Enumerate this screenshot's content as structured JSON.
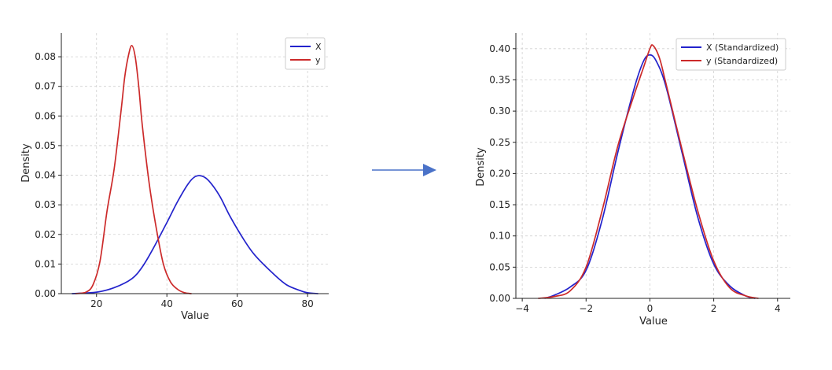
{
  "colors": {
    "X": "#2323cc",
    "y": "#cc2a2a",
    "arrow": "#4a72c8",
    "grid": "#d0d0d0"
  },
  "arrow": {
    "direction": "right"
  },
  "chart_data": [
    {
      "type": "line",
      "xlabel": "Value",
      "ylabel": "Density",
      "xlim": [
        10,
        86
      ],
      "ylim": [
        0,
        0.088
      ],
      "xticks": [
        20,
        40,
        60,
        80
      ],
      "yticks": [
        0.0,
        0.01,
        0.02,
        0.03,
        0.04,
        0.05,
        0.06,
        0.07,
        0.08
      ],
      "ytick_labels": [
        "0.00",
        "0.01",
        "0.02",
        "0.03",
        "0.04",
        "0.05",
        "0.06",
        "0.07",
        "0.08"
      ],
      "grid": true,
      "legend": "top-right",
      "series": [
        {
          "name": "X",
          "color": "#2323cc",
          "x": [
            13,
            20,
            25,
            30,
            33,
            36,
            40,
            43,
            46,
            48,
            50,
            52,
            55,
            58,
            62,
            65,
            70,
            74,
            78,
            80,
            83
          ],
          "y": [
            0.0,
            0.0005,
            0.002,
            0.005,
            0.009,
            0.015,
            0.024,
            0.031,
            0.037,
            0.0395,
            0.0397,
            0.038,
            0.033,
            0.026,
            0.018,
            0.013,
            0.007,
            0.003,
            0.001,
            0.0003,
            0.0
          ]
        },
        {
          "name": "y",
          "color": "#cc2a2a",
          "x": [
            14,
            17,
            19,
            21,
            23,
            25,
            27,
            28,
            29,
            30,
            31,
            32,
            33,
            35,
            37,
            39,
            41,
            43,
            45,
            47
          ],
          "y": [
            0.0,
            0.0005,
            0.003,
            0.011,
            0.028,
            0.042,
            0.062,
            0.073,
            0.08,
            0.0838,
            0.08,
            0.07,
            0.057,
            0.037,
            0.022,
            0.01,
            0.004,
            0.0015,
            0.0003,
            0.0
          ]
        }
      ]
    },
    {
      "type": "line",
      "xlabel": "Value",
      "ylabel": "Density",
      "xlim": [
        -4.2,
        4.4
      ],
      "ylim": [
        0,
        0.425
      ],
      "xticks": [
        -4,
        -2,
        0,
        2,
        4
      ],
      "xtick_labels": [
        "−4",
        "−2",
        "0",
        "2",
        "4"
      ],
      "yticks": [
        0.0,
        0.05,
        0.1,
        0.15,
        0.2,
        0.25,
        0.3,
        0.35,
        0.4
      ],
      "ytick_labels": [
        "0.00",
        "0.05",
        "0.10",
        "0.15",
        "0.20",
        "0.25",
        "0.30",
        "0.35",
        "0.40"
      ],
      "grid": true,
      "legend": "top-right",
      "series": [
        {
          "name": "X (Standardized)",
          "color": "#2323cc",
          "x": [
            -3.3,
            -3.0,
            -2.5,
            -2.0,
            -1.5,
            -1.0,
            -0.5,
            -0.2,
            0.0,
            0.2,
            0.5,
            1.0,
            1.5,
            2.0,
            2.5,
            3.0,
            3.3
          ],
          "y": [
            0.0,
            0.005,
            0.018,
            0.045,
            0.125,
            0.235,
            0.335,
            0.38,
            0.39,
            0.38,
            0.34,
            0.235,
            0.13,
            0.055,
            0.02,
            0.004,
            0.0
          ]
        },
        {
          "name": "y (Standardized)",
          "color": "#cc2a2a",
          "x": [
            -3.5,
            -3.0,
            -2.5,
            -2.0,
            -1.5,
            -1.0,
            -0.5,
            -0.2,
            0.0,
            0.1,
            0.3,
            0.5,
            1.0,
            1.5,
            2.0,
            2.5,
            3.0,
            3.4
          ],
          "y": [
            0.0,
            0.003,
            0.012,
            0.05,
            0.14,
            0.245,
            0.325,
            0.37,
            0.4,
            0.405,
            0.385,
            0.345,
            0.24,
            0.14,
            0.06,
            0.017,
            0.004,
            0.0
          ]
        }
      ]
    }
  ]
}
